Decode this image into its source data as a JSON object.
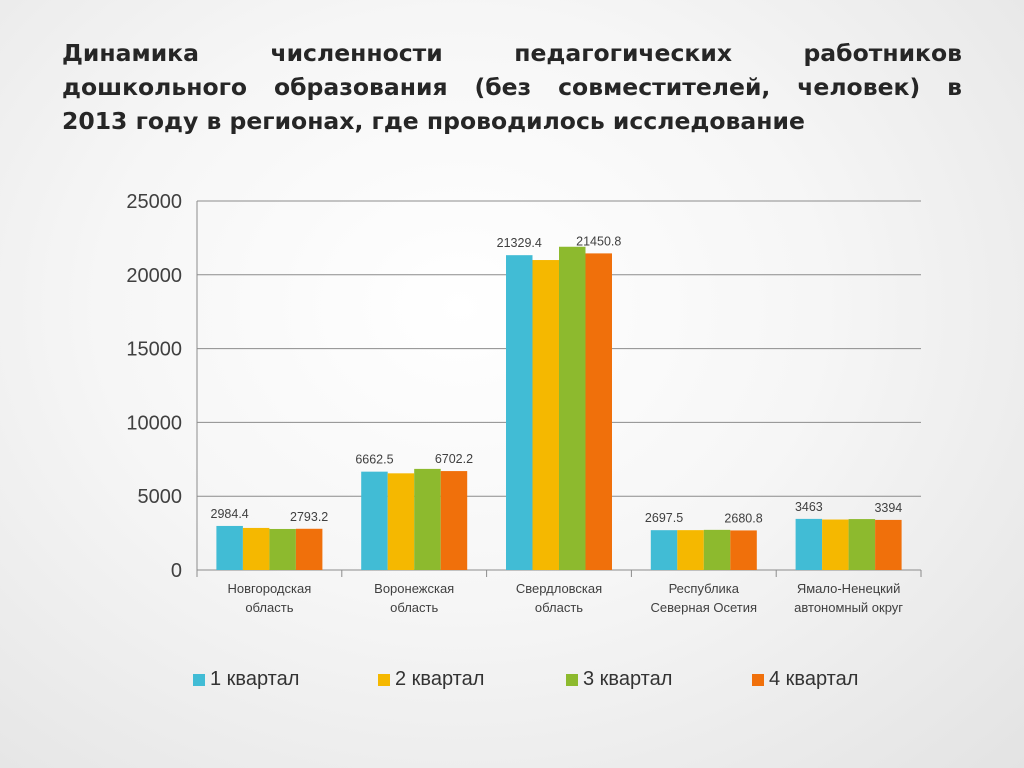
{
  "title": {
    "lines": [
      "Динамика численности педагогических работников",
      "дошкольного образования (без совместителей, человек) в",
      "2013 году в регионах, где проводилось исследование"
    ]
  },
  "colors": {
    "q1": "#41bcd5",
    "q2": "#f5b800",
    "q3": "#8dba2e",
    "q4": "#f0700b",
    "axis": "#8c8c8c",
    "grid": "#8c8c8c",
    "text": "#404040"
  },
  "chart_data": {
    "type": "bar",
    "title": "Динамика численности педагогических работников дошкольного образования (без совместителей, человек) в 2013 году в регионах, где проводилось исследование",
    "xlabel": "",
    "ylabel": "",
    "ylim": [
      0,
      25000
    ],
    "yticks": [
      0,
      5000,
      10000,
      15000,
      20000,
      25000
    ],
    "grid": true,
    "legend_position": "bottom",
    "categories": [
      [
        "Новгородская",
        "область"
      ],
      [
        "Воронежская",
        "область"
      ],
      [
        "Свердловская",
        "область"
      ],
      [
        "Республика",
        "Северная Осетия"
      ],
      [
        "Ямало-Ненецкий",
        "автономный округ"
      ]
    ],
    "series": [
      {
        "name": "1 квартал",
        "values": [
          2984.4,
          6662.5,
          21329.4,
          2697.5,
          3463
        ]
      },
      {
        "name": "2 квартал",
        "values": [
          2850,
          6550,
          21000,
          2700,
          3420
        ]
      },
      {
        "name": "3 квартал",
        "values": [
          2780,
          6850,
          21900,
          2720,
          3450
        ]
      },
      {
        "name": "4 квартал",
        "values": [
          2793.2,
          6702.2,
          21450.8,
          2680.8,
          3394
        ]
      }
    ],
    "data_labels": [
      {
        "category": 0,
        "series": 0,
        "text": "2984.4"
      },
      {
        "category": 0,
        "series": 3,
        "text": "2793.2"
      },
      {
        "category": 1,
        "series": 0,
        "text": "6662.5"
      },
      {
        "category": 1,
        "series": 3,
        "text": "6702.2"
      },
      {
        "category": 2,
        "series": 0,
        "text": "21329.4"
      },
      {
        "category": 2,
        "series": 3,
        "text": "21450.8"
      },
      {
        "category": 3,
        "series": 0,
        "text": "2697.5"
      },
      {
        "category": 3,
        "series": 3,
        "text": "2680.8"
      },
      {
        "category": 4,
        "series": 0,
        "text": "3463"
      },
      {
        "category": 4,
        "series": 3,
        "text": "3394"
      }
    ]
  }
}
